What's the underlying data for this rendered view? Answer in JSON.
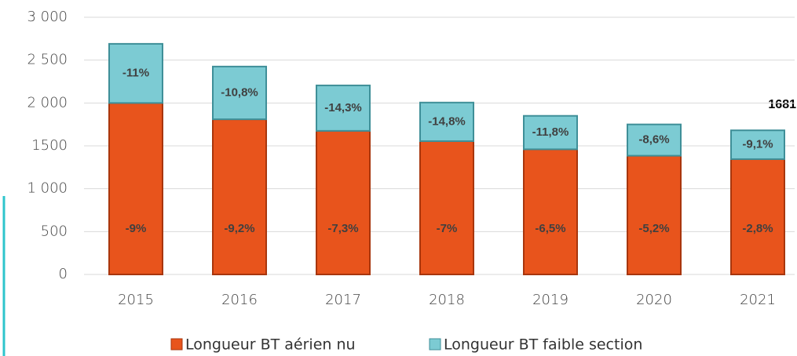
{
  "chart_data": {
    "type": "stacked_bar",
    "categories": [
      "2015",
      "2016",
      "2017",
      "2018",
      "2019",
      "2020",
      "2021"
    ],
    "series": [
      {
        "name": "Longueur BT aérien nu",
        "color": "#e8541c",
        "values": [
          2000,
          1810,
          1675,
          1555,
          1460,
          1385,
          1345
        ],
        "labels": [
          "-9%",
          "-9,2%",
          "-7,3%",
          "-7%",
          "-6,5%",
          "-5,2%",
          "-2,8%"
        ]
      },
      {
        "name": "Longueur BT faible section",
        "color": "#7ccbd3",
        "values": [
          690,
          615,
          530,
          450,
          390,
          365,
          336
        ],
        "labels": [
          "-11%",
          "-10,8%",
          "-14,3%",
          "-14,8%",
          "-11,8%",
          "-8,6%",
          "-9,1%"
        ]
      }
    ],
    "annotations": [
      "1681"
    ],
    "ylim": [
      0,
      3000
    ],
    "yticks": [
      0,
      500,
      {
        "value": 1000,
        "label": "1 000"
      },
      {
        "value": 1500,
        "label": "1500"
      },
      {
        "value": 2000,
        "label": "2 000"
      },
      {
        "value": 2500,
        "label": "2 500"
      },
      {
        "value": 3000,
        "label": "3 000"
      }
    ],
    "grid": true
  }
}
